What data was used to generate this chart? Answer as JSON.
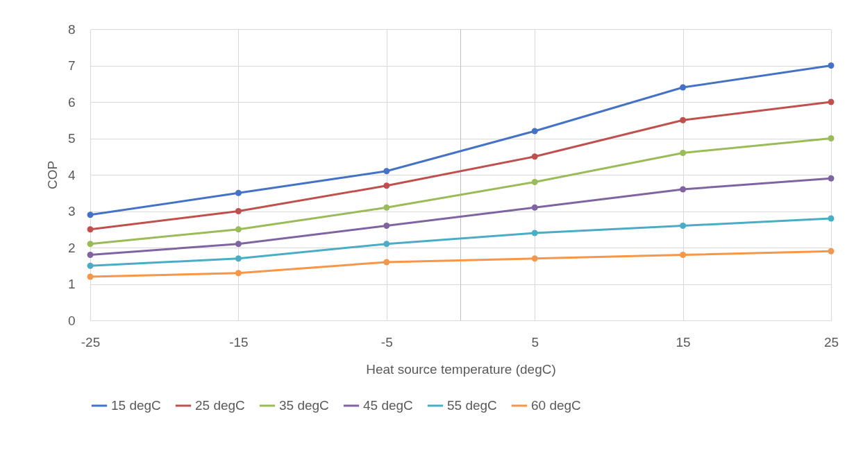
{
  "chart_data": {
    "type": "line",
    "xlabel": "Heat source temperature  (degC)",
    "ylabel": "COP",
    "x": [
      -25,
      -15,
      -5,
      5,
      15,
      25
    ],
    "series": [
      {
        "name": "15 degC",
        "color": "#4472c4",
        "values": [
          2.9,
          3.5,
          4.1,
          5.2,
          6.4,
          7.0
        ]
      },
      {
        "name": "25 degC",
        "color": "#c0504d",
        "values": [
          2.5,
          3.0,
          3.7,
          4.5,
          5.5,
          6.0
        ]
      },
      {
        "name": "35 degC",
        "color": "#9bbb59",
        "values": [
          2.1,
          2.5,
          3.1,
          3.8,
          4.6,
          5.0
        ]
      },
      {
        "name": "45 degC",
        "color": "#8064a2",
        "values": [
          1.8,
          2.1,
          2.6,
          3.1,
          3.6,
          3.9
        ]
      },
      {
        "name": "55 degC",
        "color": "#4bacc6",
        "values": [
          1.5,
          1.7,
          2.1,
          2.4,
          2.6,
          2.8
        ]
      },
      {
        "name": "60 degC",
        "color": "#f79646",
        "values": [
          1.2,
          1.3,
          1.6,
          1.7,
          1.8,
          1.9
        ]
      }
    ],
    "xlim": [
      -25,
      25
    ],
    "xticks": [
      -25,
      -15,
      -5,
      5,
      15,
      25
    ],
    "ylim": [
      0,
      8
    ],
    "yticks": [
      0,
      1,
      2,
      3,
      4,
      5,
      6,
      7,
      8
    ],
    "ref_lines": [
      {
        "axis": "x",
        "value": 0,
        "color": "#bfbfbf"
      }
    ],
    "grid": true,
    "legend": "bottom",
    "marker": "circle",
    "line_style": "solid"
  }
}
